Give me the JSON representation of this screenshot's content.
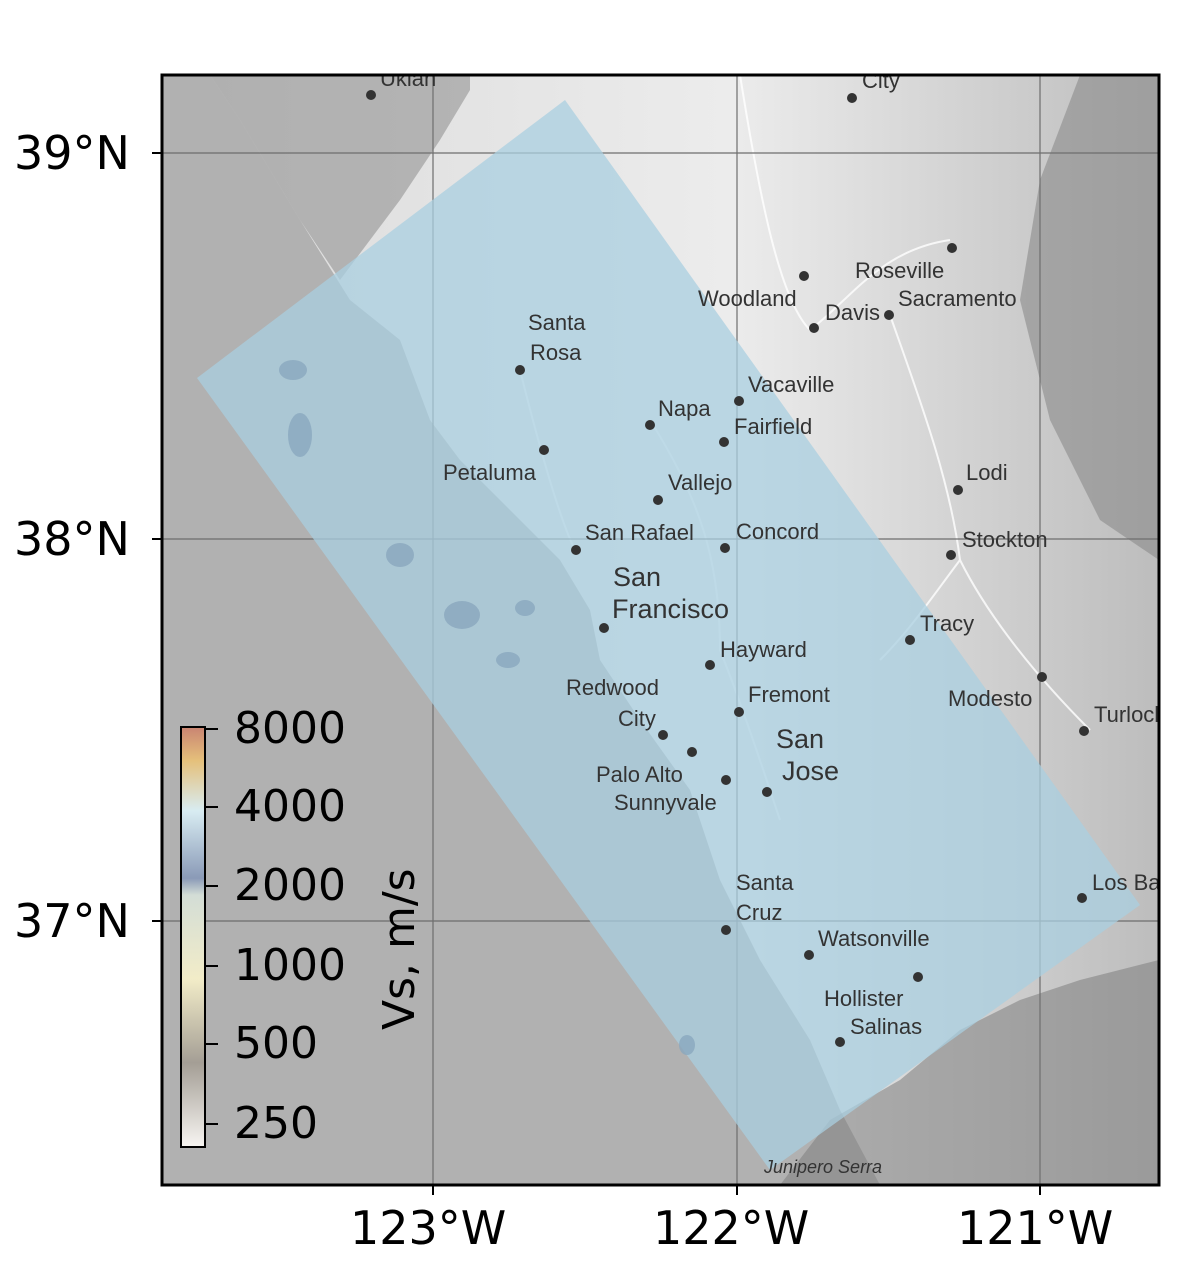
{
  "axes": {
    "lat_labels": [
      "39°N",
      "38°N",
      "37°N"
    ],
    "lon_labels": [
      "123°W",
      "122°W",
      "121°W"
    ]
  },
  "colorbar": {
    "title": "Vs, m/s",
    "ticks": [
      "8000",
      "4000",
      "2000",
      "1000",
      "500",
      "250"
    ],
    "colors": [
      "#c98472",
      "#e5c07b",
      "#d8ecf2",
      "#8a9ab7",
      "#d3ddd6",
      "#f2ecc8",
      "#a49e95",
      "#ffffff"
    ]
  },
  "map": {
    "ocean_color": "#b1b1b1",
    "overlay_color": "#a9cfe0",
    "places": [
      {
        "name": "Ukiah"
      },
      {
        "name": "City"
      },
      {
        "name": "Roseville"
      },
      {
        "name": "Woodland"
      },
      {
        "name": "Davis"
      },
      {
        "name": "Sacramento"
      },
      {
        "name": "Santa"
      },
      {
        "name": "Rosa"
      },
      {
        "name": "Vacaville"
      },
      {
        "name": "Napa"
      },
      {
        "name": "Fairfield"
      },
      {
        "name": "Petaluma"
      },
      {
        "name": "Vallejo"
      },
      {
        "name": "Lodi"
      },
      {
        "name": "San Rafael"
      },
      {
        "name": "Concord"
      },
      {
        "name": "Stockton"
      },
      {
        "name": "San"
      },
      {
        "name": "Francisco"
      },
      {
        "name": "Tracy"
      },
      {
        "name": "Hayward"
      },
      {
        "name": "Redwood"
      },
      {
        "name": "City"
      },
      {
        "name": "Fremont"
      },
      {
        "name": "Modesto"
      },
      {
        "name": "Turlock"
      },
      {
        "name": "San"
      },
      {
        "name": "Jose"
      },
      {
        "name": "Palo Alto"
      },
      {
        "name": "Sunnyvale"
      },
      {
        "name": "Santa"
      },
      {
        "name": "Cruz"
      },
      {
        "name": "Los Banos"
      },
      {
        "name": "Watsonville"
      },
      {
        "name": "Hollister"
      },
      {
        "name": "Salinas"
      },
      {
        "name": "Junipero Serra"
      }
    ]
  }
}
